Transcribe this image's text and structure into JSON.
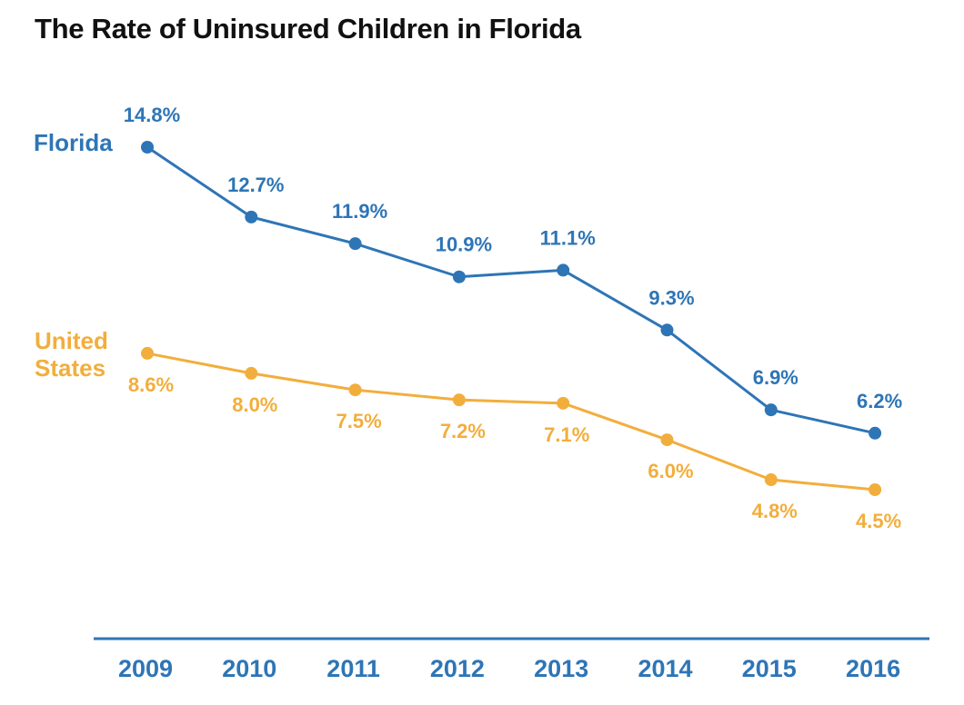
{
  "page_title": "The Rate of Uninsured Children in Florida",
  "chart_data": {
    "type": "line",
    "title": "The Rate of Uninsured Children in Florida",
    "xlabel": "",
    "ylabel": "",
    "categories": [
      "2009",
      "2010",
      "2011",
      "2012",
      "2013",
      "2014",
      "2015",
      "2016"
    ],
    "series": [
      {
        "name": "Florida",
        "color": "#2e75b6",
        "values": [
          14.8,
          12.7,
          11.9,
          10.9,
          11.1,
          9.3,
          6.9,
          6.2
        ],
        "labels": [
          "14.8%",
          "12.7%",
          "11.9%",
          "10.9%",
          "11.1%",
          "9.3%",
          "6.9%",
          "6.2%"
        ]
      },
      {
        "name": "United States",
        "name_lines": [
          "United",
          "States"
        ],
        "color": "#f2ae3c",
        "values": [
          8.6,
          8.0,
          7.5,
          7.2,
          7.1,
          6.0,
          4.8,
          4.5
        ],
        "labels": [
          "8.6%",
          "8.0%",
          "7.5%",
          "7.2%",
          "7.1%",
          "6.0%",
          "4.8%",
          "4.5%"
        ]
      }
    ],
    "grid": false,
    "y_axis_visible": false,
    "axis_color": "#2e75b6"
  }
}
